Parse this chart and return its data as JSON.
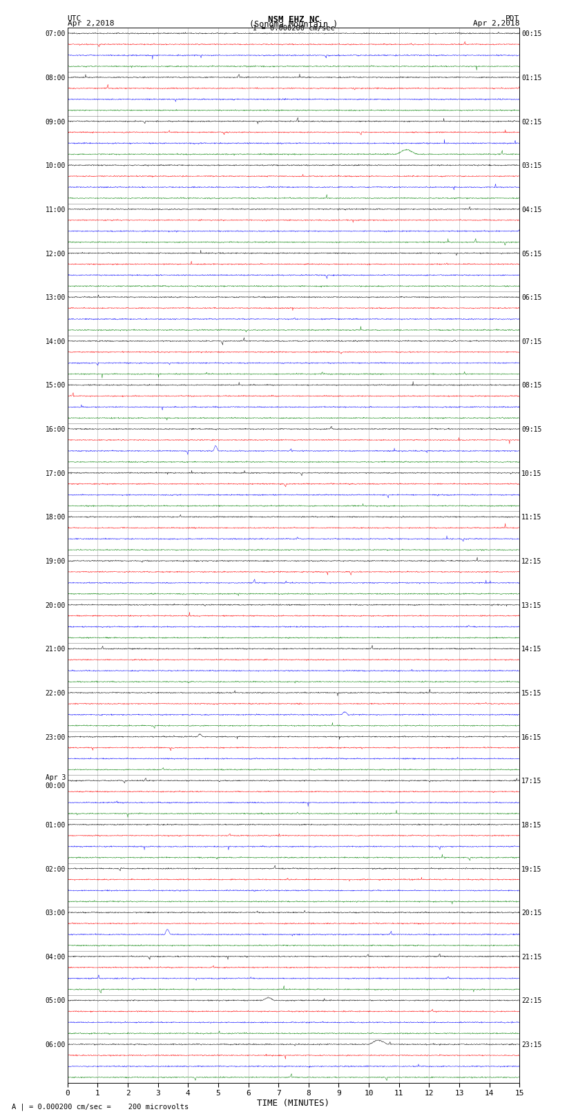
{
  "title_line1": "NSM EHZ NC",
  "title_line2": "(Sonoma Mountain )",
  "title_line3": "I = 0.000200 cm/sec",
  "label_utc": "UTC",
  "label_pdt": "PDT",
  "date_left": "Apr 2,2018",
  "date_right": "Apr 2,2018",
  "xlabel": "TIME (MINUTES)",
  "footnote": "A | = 0.000200 cm/sec =    200 microvolts",
  "bg_color": "#ffffff",
  "trace_colors": [
    "black",
    "red",
    "blue",
    "green"
  ],
  "left_labels_utc": [
    "07:00",
    "08:00",
    "09:00",
    "10:00",
    "11:00",
    "12:00",
    "13:00",
    "14:00",
    "15:00",
    "16:00",
    "17:00",
    "18:00",
    "19:00",
    "20:00",
    "21:00",
    "22:00",
    "23:00",
    "Apr 3\n00:00",
    "01:00",
    "02:00",
    "03:00",
    "04:00",
    "05:00",
    "06:00"
  ],
  "right_labels_pdt": [
    "00:15",
    "01:15",
    "02:15",
    "03:15",
    "04:15",
    "05:15",
    "06:15",
    "07:15",
    "08:15",
    "09:15",
    "10:15",
    "11:15",
    "12:15",
    "13:15",
    "14:15",
    "15:15",
    "16:15",
    "17:15",
    "18:15",
    "19:15",
    "20:15",
    "21:15",
    "22:15",
    "23:15"
  ],
  "num_rows": 24,
  "traces_per_row": 4,
  "minutes_per_row": 15,
  "samples_per_minute": 100,
  "noise_scale": 0.025,
  "spike_probability": 0.25,
  "xmin": 0,
  "xmax": 15
}
